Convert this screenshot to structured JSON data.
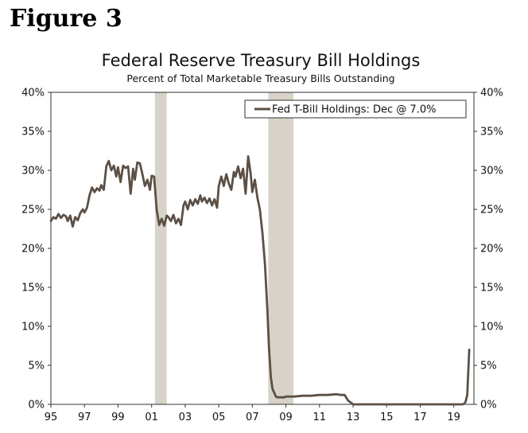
{
  "figure_label": "Figure 3",
  "chart_data": {
    "type": "line",
    "title": "Federal Reserve Treasury Bill Holdings",
    "subtitle": "Percent of Total Marketable Treasury Bills Outstanding",
    "xlabel": "",
    "ylabel": "",
    "xlim": [
      1995,
      2020.2
    ],
    "ylim": [
      0,
      40
    ],
    "x_ticks": [
      1995,
      1997,
      1999,
      2001,
      2003,
      2005,
      2007,
      2009,
      2011,
      2013,
      2015,
      2017,
      2019
    ],
    "x_tick_labels": [
      "95",
      "97",
      "99",
      "01",
      "03",
      "05",
      "07",
      "09",
      "11",
      "13",
      "15",
      "17",
      "19"
    ],
    "y_ticks": [
      0,
      5,
      10,
      15,
      20,
      25,
      30,
      35,
      40
    ],
    "y_tick_labels": [
      "0%",
      "5%",
      "10%",
      "15%",
      "20%",
      "25%",
      "30%",
      "35%",
      "40%"
    ],
    "right_y_tick_labels": [
      "0%",
      "5%",
      "10%",
      "15%",
      "20%",
      "25%",
      "30%",
      "35%",
      "40%"
    ],
    "legend": {
      "position": "top-right",
      "label": "Fed T-Bill Holdings: Dec @ 7.0%"
    },
    "colors": {
      "line": "#5c5046",
      "recession": "#d8d3c8",
      "axis": "#333333"
    },
    "recessions": [
      [
        2001.2,
        2001.9
      ],
      [
        2007.95,
        2009.45
      ]
    ],
    "series": [
      {
        "name": "Fed T-Bill Holdings: Dec @ 7.0%",
        "x": [
          1995.0,
          1995.15,
          1995.3,
          1995.45,
          1995.6,
          1995.75,
          1995.9,
          1996.0,
          1996.15,
          1996.3,
          1996.45,
          1996.6,
          1996.75,
          1996.9,
          1997.0,
          1997.15,
          1997.3,
          1997.45,
          1997.6,
          1997.75,
          1997.9,
          1998.0,
          1998.15,
          1998.3,
          1998.45,
          1998.6,
          1998.75,
          1998.9,
          1999.0,
          1999.15,
          1999.3,
          1999.45,
          1999.6,
          1999.75,
          1999.9,
          2000.0,
          2000.15,
          2000.3,
          2000.45,
          2000.6,
          2000.75,
          2000.9,
          2001.0,
          2001.15,
          2001.3,
          2001.45,
          2001.6,
          2001.75,
          2001.9,
          2002.0,
          2002.15,
          2002.3,
          2002.45,
          2002.6,
          2002.75,
          2002.9,
          2003.0,
          2003.15,
          2003.3,
          2003.45,
          2003.6,
          2003.75,
          2003.9,
          2004.0,
          2004.15,
          2004.3,
          2004.45,
          2004.6,
          2004.75,
          2004.9,
          2005.0,
          2005.15,
          2005.3,
          2005.45,
          2005.6,
          2005.75,
          2005.9,
          2006.0,
          2006.15,
          2006.3,
          2006.45,
          2006.6,
          2006.75,
          2006.9,
          2007.0,
          2007.15,
          2007.3,
          2007.45,
          2007.6,
          2007.75,
          2007.9,
          2008.0,
          2008.1,
          2008.2,
          2008.3,
          2008.4,
          2008.5,
          2008.6,
          2008.75,
          2008.9,
          2009.0,
          2009.5,
          2010.0,
          2010.5,
          2011.0,
          2011.5,
          2012.0,
          2012.3,
          2012.5,
          2012.7,
          2013.0,
          2014.0,
          2015.0,
          2016.0,
          2017.0,
          2018.0,
          2019.0,
          2019.5,
          2019.6,
          2019.7,
          2019.8,
          2019.92
        ],
        "values": [
          23.5,
          24.0,
          23.8,
          24.4,
          23.9,
          24.3,
          24.1,
          23.5,
          24.2,
          22.8,
          24.0,
          23.6,
          24.5,
          25.0,
          24.6,
          25.2,
          26.8,
          27.8,
          27.2,
          27.7,
          27.4,
          28.1,
          27.5,
          30.5,
          31.2,
          30.0,
          30.6,
          29.2,
          30.4,
          28.5,
          30.6,
          30.3,
          30.5,
          27.0,
          30.2,
          28.8,
          31.0,
          30.9,
          29.5,
          28.0,
          28.8,
          27.5,
          29.3,
          29.2,
          25.0,
          23.0,
          23.8,
          22.9,
          24.2,
          24.0,
          23.5,
          24.3,
          23.2,
          23.8,
          23.0,
          25.5,
          26.0,
          25.0,
          26.2,
          25.5,
          26.3,
          25.7,
          26.8,
          26.0,
          26.5,
          25.8,
          26.4,
          25.5,
          26.3,
          25.2,
          28.0,
          29.2,
          28.0,
          29.5,
          28.3,
          27.5,
          29.8,
          29.2,
          30.5,
          29.0,
          30.2,
          27.0,
          31.8,
          29.6,
          27.2,
          28.8,
          26.5,
          25.0,
          22.0,
          18.0,
          12.0,
          7.0,
          3.5,
          2.0,
          1.5,
          1.0,
          0.9,
          0.9,
          0.9,
          0.9,
          1.0,
          1.0,
          1.1,
          1.1,
          1.2,
          1.2,
          1.3,
          1.2,
          1.2,
          0.5,
          0.0,
          0.0,
          0.0,
          0.0,
          0.0,
          0.0,
          0.0,
          0.0,
          0.05,
          0.3,
          1.2,
          7.0
        ]
      }
    ]
  }
}
